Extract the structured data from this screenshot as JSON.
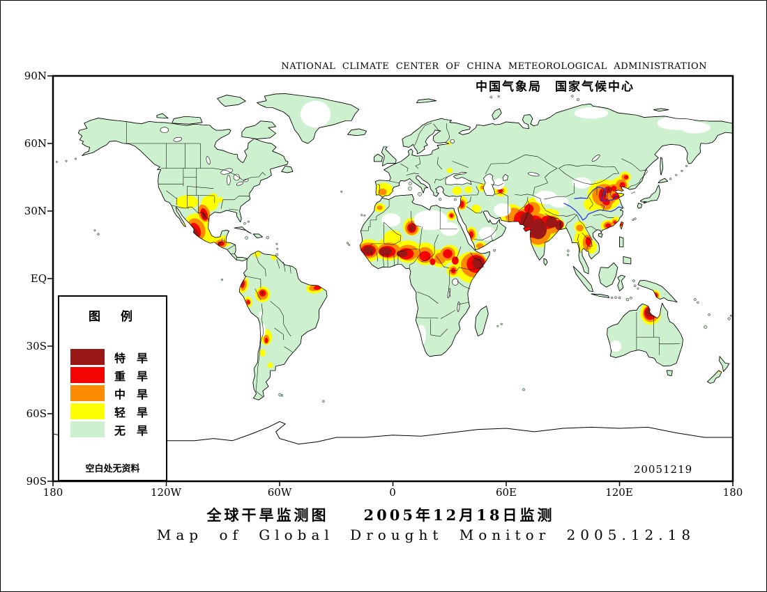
{
  "header": {
    "agency_en": "NATIONAL CLIMATE CENTER OF CHINA METEOROLOGICAL ADMINISTRATION",
    "agency_zh": "中国气象局　国家气候中心"
  },
  "map": {
    "date_stamp": "20051219",
    "colors": {
      "extreme": "#9a1717",
      "severe": "#f40400",
      "moderate": "#fb8b00",
      "light": "#ffff00",
      "none": "#cdf0ce",
      "river": "#2b3cdb",
      "ocean": "#ffffff",
      "frame": "#000000"
    }
  },
  "axis": {
    "y": [
      "90N",
      "60N",
      "30N",
      "EQ",
      "30S",
      "60S",
      "90S"
    ],
    "x": [
      "180",
      "120W",
      "60W",
      "0",
      "60E",
      "120E",
      "180"
    ]
  },
  "legend": {
    "title": "图　例",
    "items": [
      {
        "label": "特　旱",
        "color": "#9a1717"
      },
      {
        "label": "重　旱",
        "color": "#f40400"
      },
      {
        "label": "中　旱",
        "color": "#fb8b00"
      },
      {
        "label": "轻　旱",
        "color": "#ffff00"
      },
      {
        "label": "无　旱",
        "color": "#cdf0ce"
      }
    ],
    "note": "空白处无资料"
  },
  "titles": {
    "zh": "全球干旱监测图　　2005年12月18日监测",
    "en": "Map of Global Drought Monitor 2005.12.18"
  }
}
